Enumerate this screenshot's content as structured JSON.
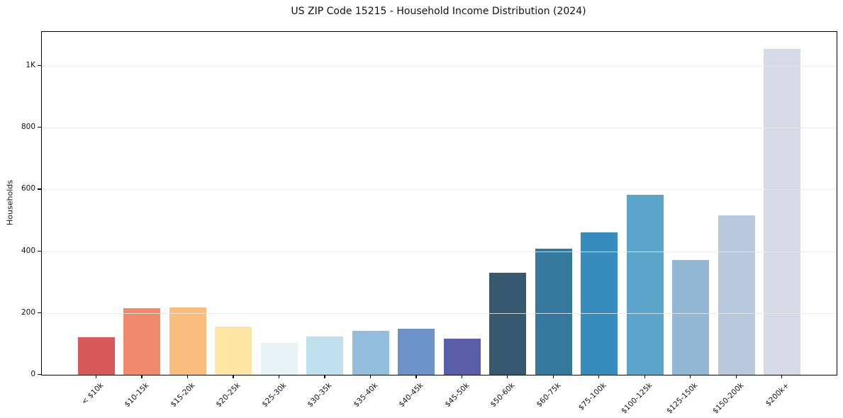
{
  "figure": {
    "background": "#ffffff"
  },
  "chart_data": {
    "type": "bar",
    "title": "US ZIP Code 15215 - Household Income Distribution (2024)",
    "xlabel": "",
    "ylabel": "Households",
    "categories": [
      "< $10k",
      "$10-15k",
      "$15-20k",
      "$20-25k",
      "$25-30k",
      "$30-35k",
      "$35-40k",
      "$40-45k",
      "$45-50k",
      "$50-60k",
      "$60-75k",
      "$75-100k",
      "$100-125k",
      "$125-150k",
      "$150-200k",
      "$200k+"
    ],
    "values": [
      122,
      215,
      218,
      156,
      104,
      125,
      142,
      148,
      116,
      330,
      408,
      462,
      582,
      372,
      516,
      1054
    ],
    "bar_colors": [
      "#d6595b",
      "#f18a6a",
      "#fabd7e",
      "#fde5a4",
      "#e6f2f5",
      "#bfe0ec",
      "#93bddc",
      "#6b93c7",
      "#5a5ea9",
      "#36596f",
      "#35799e",
      "#378bbf",
      "#5ba4ca",
      "#92b8d5",
      "#b8c9dd",
      "#d7d9e6"
    ],
    "ylim": [
      0,
      1110
    ],
    "yticks": [
      {
        "value": 0,
        "label": "0"
      },
      {
        "value": 200,
        "label": "200"
      },
      {
        "value": 400,
        "label": "400"
      },
      {
        "value": 600,
        "label": "600"
      },
      {
        "value": 800,
        "label": "800"
      },
      {
        "value": 1000,
        "label": "1K"
      }
    ],
    "grid": "horizontal",
    "grid_color": "#e6e6e6",
    "axis_color": "#000000",
    "text_color": "#111111",
    "legend_position": "none"
  }
}
